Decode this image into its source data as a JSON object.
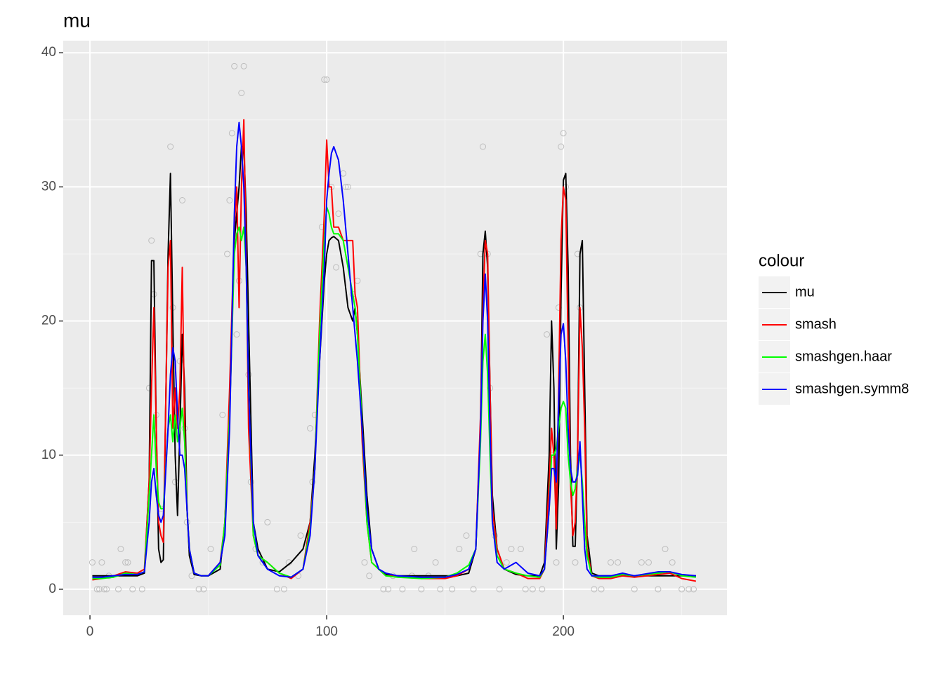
{
  "chart_data": {
    "type": "line",
    "title": "mu",
    "legend_title": "colour",
    "legend_position": "right",
    "grid": true,
    "xlim": [
      -11.3,
      269.1
    ],
    "ylim": [
      -1.94,
      40.9
    ],
    "xticks": [
      0,
      100,
      200
    ],
    "yticks": [
      0,
      10,
      20,
      30,
      40
    ],
    "x_minor_ticks": [
      50,
      150,
      250
    ],
    "y_minor_ticks": [
      5,
      15,
      25,
      35
    ],
    "x": [
      1,
      5,
      10,
      15,
      20,
      23,
      25,
      26,
      27,
      28,
      29,
      30,
      31,
      33,
      34,
      35,
      36,
      37,
      38,
      39,
      40,
      41,
      42,
      44,
      47,
      50,
      55,
      57,
      59,
      61,
      62,
      63,
      64,
      65,
      66,
      67,
      69,
      71,
      75,
      80,
      85,
      90,
      93,
      95,
      97,
      99,
      100,
      101,
      102,
      103,
      105,
      107,
      109,
      111,
      112,
      113,
      115,
      117,
      119,
      122,
      125,
      130,
      140,
      150,
      155,
      160,
      163,
      165,
      166,
      167,
      168,
      169,
      170,
      172,
      175,
      180,
      185,
      190,
      192,
      194,
      195,
      196,
      197,
      198,
      199,
      200,
      201,
      202,
      203,
      204,
      205,
      206,
      207,
      208,
      209,
      210,
      212,
      215,
      220,
      225,
      230,
      240,
      245,
      250,
      256
    ],
    "series": [
      {
        "name": "mu",
        "color": "#000000",
        "values": [
          1,
          1,
          1,
          1,
          1,
          1.2,
          8,
          24.5,
          24.5,
          12,
          3,
          2,
          2.2,
          25,
          31,
          20,
          10,
          5.5,
          12,
          19,
          15,
          6,
          2.5,
          1.1,
          1,
          1,
          1.5,
          5,
          13,
          26,
          28,
          30,
          33,
          33,
          28,
          20,
          5,
          3,
          1.5,
          1.3,
          2,
          3,
          5,
          10,
          17,
          23,
          25,
          26,
          26.2,
          26.3,
          26,
          24,
          21,
          20,
          21,
          19,
          13,
          7,
          3,
          1.5,
          1.1,
          1,
          1,
          1,
          1,
          1.2,
          3,
          12,
          25,
          26.7,
          24,
          15,
          7,
          3,
          1.5,
          1.1,
          1,
          1,
          2,
          10,
          20,
          15,
          3,
          8,
          22,
          30.5,
          31,
          24,
          10,
          3.2,
          3.2,
          10,
          25,
          26,
          15,
          4,
          1.2,
          1,
          1,
          1,
          1,
          1,
          1,
          1,
          1
        ]
      },
      {
        "name": "smash",
        "color": "#ff0000",
        "values": [
          0.7,
          0.8,
          1,
          1.3,
          1.2,
          1.5,
          8,
          15,
          21,
          12,
          5,
          4,
          3.5,
          24,
          26,
          12,
          15,
          12,
          15,
          24,
          12,
          6,
          3,
          1.2,
          1,
          1,
          2,
          5,
          15,
          27,
          30,
          21,
          30,
          35,
          25,
          12,
          4,
          2.5,
          2,
          1.2,
          0.8,
          1.5,
          5,
          9,
          20,
          28,
          33.5,
          30,
          30,
          27,
          27,
          26,
          26,
          26,
          22,
          21,
          11,
          5,
          2,
          1.5,
          1,
          1,
          0.8,
          0.8,
          1,
          1.5,
          3,
          13,
          21,
          26,
          25,
          15,
          6,
          3,
          1.5,
          1.2,
          0.8,
          0.8,
          1.5,
          8,
          12,
          10,
          4.5,
          15,
          26,
          30,
          29,
          18,
          8,
          4,
          5,
          10,
          21,
          18,
          12,
          3,
          1,
          0.8,
          0.8,
          1,
          0.9,
          1.1,
          1.2,
          0.8,
          0.6
        ]
      },
      {
        "name": "smashgen.haar",
        "color": "#00ff00",
        "values": [
          0.8,
          0.8,
          0.9,
          1.2,
          1.1,
          1.3,
          7,
          10,
          13,
          9,
          6.5,
          6,
          6,
          12,
          13,
          11,
          13,
          11,
          12,
          13.5,
          11,
          6,
          3,
          1.2,
          1,
          1,
          1.8,
          5,
          13,
          25,
          26.5,
          27,
          26,
          27,
          24,
          15,
          4,
          2.5,
          2,
          1.2,
          0.9,
          1.5,
          4.5,
          9,
          19,
          26,
          28.5,
          28,
          27,
          26.5,
          26.5,
          26,
          24,
          22,
          21,
          19,
          12,
          5,
          2,
          1.5,
          1,
          0.9,
          0.8,
          0.9,
          1.2,
          1.8,
          3,
          11,
          17,
          19,
          16,
          10,
          5,
          2.5,
          1.5,
          1.2,
          1,
          0.9,
          1.5,
          6,
          10,
          10,
          10.5,
          12,
          13.5,
          14,
          13.5,
          10,
          8,
          7,
          7.5,
          9,
          10,
          8,
          5,
          2.5,
          1,
          0.9,
          0.9,
          1.1,
          1,
          1.2,
          1.3,
          1,
          0.9
        ]
      },
      {
        "name": "smashgen.symm8",
        "color": "#0000ff",
        "values": [
          0.9,
          0.9,
          1,
          1.1,
          1.1,
          1.3,
          5,
          8,
          9,
          7,
          5.5,
          5,
          5.5,
          12,
          16,
          18,
          17,
          13,
          10,
          10,
          9,
          6,
          3,
          1.2,
          1,
          1,
          2,
          4,
          12,
          28,
          33,
          34.8,
          33,
          30,
          24,
          15,
          5,
          2.5,
          1.5,
          1,
          0.9,
          1.5,
          4,
          9,
          17,
          24,
          29,
          31,
          32.5,
          33,
          32,
          29,
          25,
          21,
          19,
          17,
          12,
          6,
          3,
          1.5,
          1.2,
          1,
          0.9,
          0.9,
          1.1,
          1.5,
          3,
          12,
          20,
          23.5,
          20,
          12,
          5,
          2,
          1.5,
          2,
          1.2,
          1,
          1.5,
          6,
          9,
          9,
          8,
          14,
          19,
          19.8,
          17,
          12,
          9,
          8,
          8,
          8.5,
          11,
          7,
          3,
          1.5,
          1,
          1,
          1,
          1.2,
          1,
          1.3,
          1.3,
          1.1,
          1
        ]
      }
    ],
    "points": {
      "color": "#bdbdbd",
      "x": [
        1,
        3,
        4,
        5,
        6,
        7,
        8,
        12,
        13,
        15,
        16,
        18,
        22,
        25,
        26,
        27,
        28,
        30,
        34,
        35,
        36,
        38,
        39,
        40,
        41,
        43,
        46,
        48,
        51,
        56,
        58,
        59,
        60,
        61,
        62,
        63,
        64,
        65,
        67,
        68,
        70,
        73,
        75,
        79,
        82,
        84,
        88,
        89,
        93,
        94,
        95,
        98,
        99,
        100,
        102,
        104,
        105,
        107,
        108,
        109,
        111,
        113,
        116,
        118,
        124,
        126,
        128,
        132,
        136,
        137,
        140,
        143,
        146,
        148,
        153,
        156,
        159,
        162,
        165,
        166,
        168,
        169,
        171,
        173,
        176,
        178,
        182,
        184,
        187,
        191,
        193,
        195,
        197,
        198,
        199,
        200,
        201,
        205,
        206,
        207,
        210,
        213,
        216,
        220,
        223,
        230,
        233,
        236,
        240,
        243,
        246,
        250,
        253,
        255
      ],
      "values": [
        2,
        0,
        0,
        2,
        0,
        0,
        1,
        0,
        3,
        2,
        2,
        0,
        0,
        15,
        26,
        22,
        13,
        6,
        33,
        21,
        8,
        17,
        29,
        12,
        5,
        1,
        0,
        0,
        3,
        13,
        25,
        29,
        34,
        39,
        19,
        23,
        37,
        39,
        16,
        8,
        3,
        2,
        5,
        0,
        0,
        2,
        1,
        4,
        12,
        8,
        13,
        27,
        38,
        38,
        30,
        24,
        28,
        31,
        30,
        30,
        22,
        23,
        2,
        1,
        0,
        0,
        1,
        0,
        1,
        3,
        0,
        1,
        2,
        0,
        0,
        3,
        4,
        0,
        25,
        33,
        25,
        15,
        4,
        0,
        2,
        3,
        3,
        0,
        0,
        0,
        19,
        10,
        2,
        21,
        33,
        34,
        30,
        2,
        25,
        21,
        3,
        0,
        0,
        2,
        2,
        0,
        2,
        2,
        0,
        3,
        2,
        0,
        0,
        0
      ]
    }
  }
}
